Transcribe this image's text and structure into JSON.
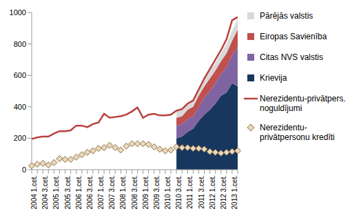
{
  "chart_data": {
    "type": "line",
    "stacked": true,
    "legend": "right",
    "grid": false,
    "categories": [
      "2004 1.cet.",
      null,
      "2004 3.cet.",
      null,
      "2005 1.cet.",
      null,
      "2005 3.cet.",
      null,
      "2006 1.cet.",
      null,
      "2006 3.cet.",
      null,
      "2007 1.cet.",
      null,
      "2007 3.cet.",
      null,
      "2008 1.cet.",
      null,
      "2008 3.cet.",
      null,
      "2009 1.cet.",
      null,
      "2009 3.cet.",
      null,
      "2010 1.cet.",
      null,
      "2010 3.cet.",
      null,
      "2011 1.cet.",
      null,
      "2011 3.cet.",
      null,
      "2012 1.cet.",
      null,
      "2012 3.cet.",
      null,
      "2013 1.cet.",
      null
    ],
    "ylim": [
      0,
      1000
    ],
    "yticks": [
      0,
      200,
      400,
      600,
      800,
      1000
    ],
    "series": [
      {
        "name": "Krievija",
        "type": "area",
        "color": "#17375e",
        "values": [
          null,
          null,
          null,
          null,
          null,
          null,
          null,
          null,
          null,
          null,
          null,
          null,
          null,
          null,
          null,
          null,
          null,
          null,
          null,
          null,
          null,
          null,
          null,
          null,
          null,
          null,
          200,
          210,
          240,
          260,
          310,
          350,
          380,
          420,
          470,
          490,
          550,
          530
        ]
      },
      {
        "name": "Citas NVS valstis",
        "type": "area",
        "color": "#8064a2",
        "values": [
          null,
          null,
          null,
          null,
          null,
          null,
          null,
          null,
          null,
          null,
          null,
          null,
          null,
          null,
          null,
          null,
          null,
          null,
          null,
          null,
          null,
          null,
          null,
          null,
          null,
          null,
          80,
          80,
          80,
          80,
          90,
          110,
          120,
          130,
          140,
          160,
          180,
          250
        ]
      },
      {
        "name": "Eiropas Savienība",
        "type": "area",
        "color": "#c0504d",
        "values": [
          null,
          null,
          null,
          null,
          null,
          null,
          null,
          null,
          null,
          null,
          null,
          null,
          null,
          null,
          null,
          null,
          null,
          null,
          null,
          null,
          null,
          null,
          null,
          null,
          null,
          null,
          50,
          50,
          60,
          60,
          70,
          70,
          80,
          80,
          80,
          90,
          90,
          110
        ]
      },
      {
        "name": "Pārējās valstis",
        "type": "area",
        "color": "#d9d9d9",
        "values": [
          null,
          null,
          null,
          null,
          null,
          null,
          null,
          null,
          null,
          null,
          null,
          null,
          null,
          null,
          null,
          null,
          null,
          null,
          null,
          null,
          null,
          null,
          null,
          null,
          null,
          null,
          40,
          40,
          40,
          40,
          40,
          40,
          50,
          50,
          50,
          60,
          60,
          70
        ]
      },
      {
        "name": "Nerezidentu-privātpers. noguldījumi",
        "type": "line",
        "color": "#b9403c",
        "line_style": "solid",
        "values": [
          195,
          205,
          210,
          210,
          230,
          245,
          245,
          250,
          280,
          280,
          270,
          290,
          300,
          355,
          330,
          335,
          340,
          350,
          370,
          395,
          330,
          350,
          355,
          345,
          345,
          350,
          375,
          385,
          420,
          440,
          510,
          580,
          640,
          700,
          760,
          830,
          950,
          970
        ]
      },
      {
        "name": "Nerezidentu-privātpersonu kredīti",
        "type": "scatter",
        "marker": "diamond",
        "color": "#ead8bd",
        "values": [
          25,
          35,
          40,
          30,
          45,
          70,
          65,
          65,
          80,
          95,
          110,
          120,
          135,
          140,
          155,
          140,
          125,
          150,
          165,
          165,
          165,
          160,
          145,
          130,
          120,
          125,
          145,
          140,
          140,
          135,
          135,
          130,
          115,
          110,
          105,
          110,
          115,
          120
        ]
      }
    ]
  }
}
